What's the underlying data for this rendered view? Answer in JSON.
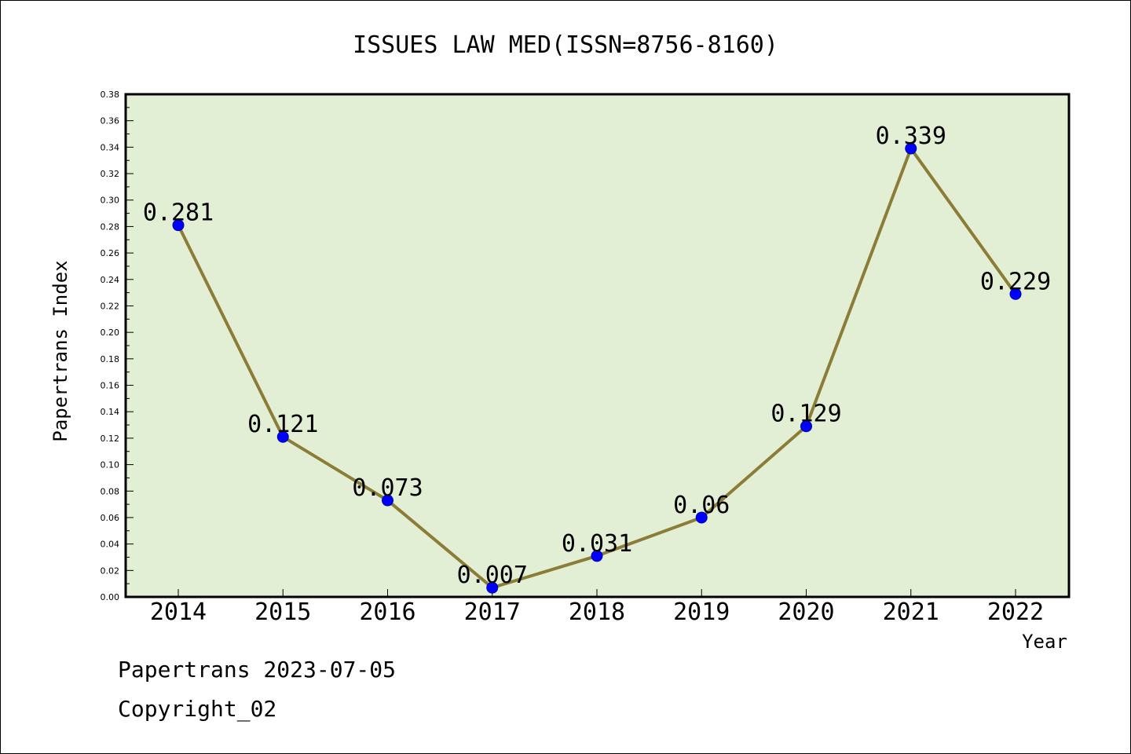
{
  "chart_data": {
    "type": "line",
    "title": "ISSUES LAW MED(ISSN=8756-8160)",
    "xlabel": "Year",
    "ylabel": "Papertrans Index",
    "x": [
      "2014",
      "2015",
      "2016",
      "2017",
      "2018",
      "2019",
      "2020",
      "2021",
      "2022"
    ],
    "series": [
      {
        "values": [
          0.281,
          0.121,
          0.073,
          0.007,
          0.031,
          0.06,
          0.129,
          0.339,
          0.229
        ],
        "labels": [
          "0.281",
          "0.121",
          "0.073",
          "0.007",
          "0.031",
          "0.06",
          "0.129",
          "0.339",
          "0.229"
        ]
      }
    ],
    "ylim": [
      0,
      0.38
    ],
    "yticks": [
      "0.00",
      "0.02",
      "0.04",
      "0.06",
      "0.08",
      "0.10",
      "0.12",
      "0.14",
      "0.16",
      "0.18",
      "0.20",
      "0.22",
      "0.24",
      "0.26",
      "0.28",
      "0.30",
      "0.32",
      "0.34",
      "0.36",
      "0.38"
    ],
    "grid": false,
    "colors": {
      "plot_background": "#e2efd5",
      "line": "#8b7d37",
      "marker": "#0000ff"
    }
  },
  "footer": {
    "date": "Papertrans 2023-07-05",
    "copyright": "Copyright_02"
  }
}
